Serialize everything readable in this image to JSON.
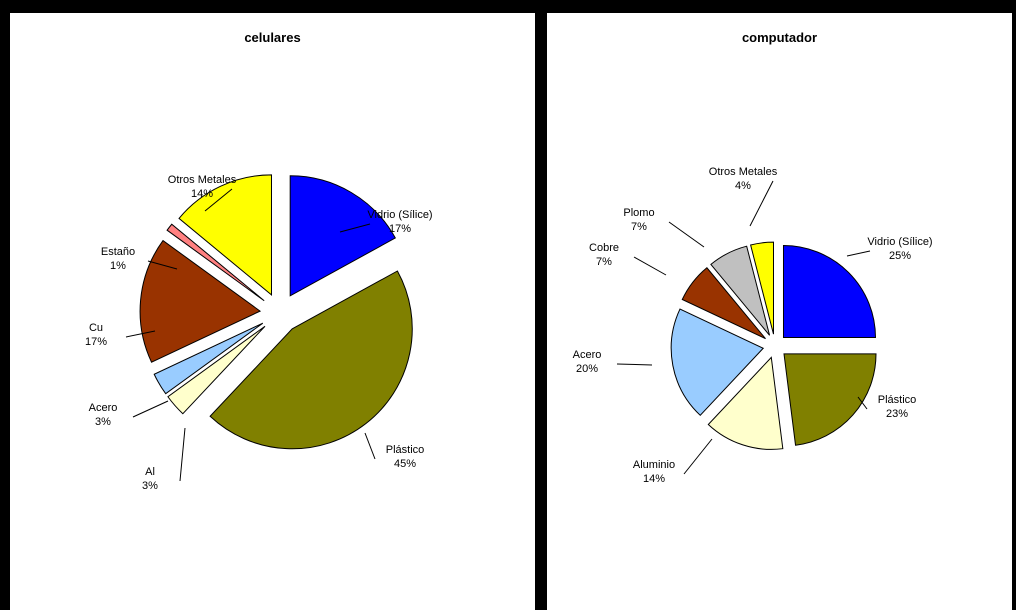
{
  "chart_data": [
    {
      "type": "pie",
      "title": "celulares",
      "slices": [
        {
          "label": "Vidrio (Sílice)",
          "value": 17,
          "pct": "17%",
          "color": "#0000ff"
        },
        {
          "label": "Plástico",
          "value": 45,
          "pct": "45%",
          "color": "#808000"
        },
        {
          "label": "Al",
          "value": 3,
          "pct": "3%",
          "color": "#ffffcc"
        },
        {
          "label": "Acero",
          "value": 3,
          "pct": "3%",
          "color": "#99ccff"
        },
        {
          "label": "Cu",
          "value": 17,
          "pct": "17%",
          "color": "#993300"
        },
        {
          "label": "Estaño",
          "value": 1,
          "pct": "1%",
          "color": "#ff8080"
        },
        {
          "label": "Otros Metales",
          "value": 14,
          "pct": "14%",
          "color": "#ffff00"
        }
      ]
    },
    {
      "type": "pie",
      "title": "computador",
      "slices": [
        {
          "label": "Vidrio (Sílice)",
          "value": 25,
          "pct": "25%",
          "color": "#0000ff"
        },
        {
          "label": "Plástico",
          "value": 23,
          "pct": "23%",
          "color": "#808000"
        },
        {
          "label": "Aluminio",
          "value": 14,
          "pct": "14%",
          "color": "#ffffcc"
        },
        {
          "label": "Acero",
          "value": 20,
          "pct": "20%",
          "color": "#99ccff"
        },
        {
          "label": "Cobre",
          "value": 7,
          "pct": "7%",
          "color": "#993300"
        },
        {
          "label": "Plomo",
          "value": 7,
          "pct": "7%",
          "color": "#c0c0c0"
        },
        {
          "label": "Otros Metales",
          "value": 4,
          "pct": "4%",
          "color": "#ffff00"
        }
      ]
    }
  ]
}
